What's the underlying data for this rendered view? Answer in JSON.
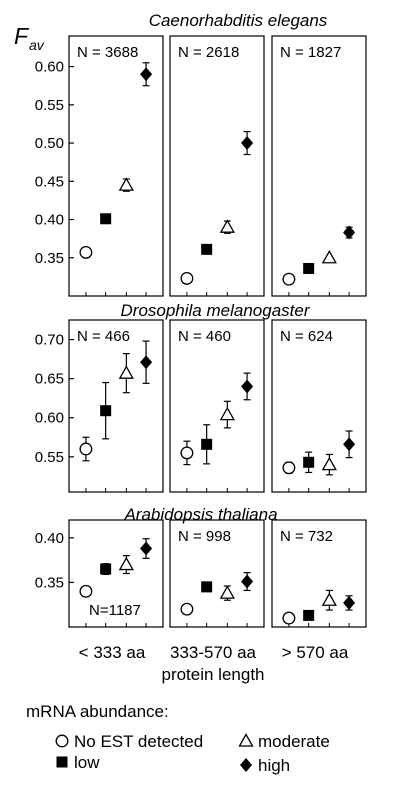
{
  "y_axis_label": "F",
  "y_axis_label_sub": "av",
  "legend": {
    "title": "mRNA abundance:",
    "items": [
      {
        "label": "No EST detected",
        "marker": "open-circle"
      },
      {
        "label": "moderate",
        "marker": "open-triangle"
      },
      {
        "label": "low",
        "marker": "filled-square"
      },
      {
        "label": "high",
        "marker": "filled-diamond"
      }
    ]
  },
  "x_categories": [
    {
      "line1": "< 333 aa",
      "line2": ""
    },
    {
      "line1": "333-570 aa",
      "line2": "protein length"
    },
    {
      "line1": "> 570 aa",
      "line2": ""
    }
  ],
  "chart_data": [
    {
      "type": "scatter",
      "title": "Caenorhabditis elegans",
      "ylim": [
        0.3,
        0.64
      ],
      "yticks": [
        0.35,
        0.4,
        0.45,
        0.5,
        0.55,
        0.6
      ],
      "ytick_labels": [
        "0.35",
        "0.40",
        "0.45",
        "0.50",
        "0.55",
        "0.60"
      ],
      "categories": [
        "< 333 aa",
        "333-570 aa",
        "> 570 aa"
      ],
      "n_labels": [
        "N = 3688",
        "N = 2618",
        "N = 1827"
      ],
      "series": [
        {
          "name": "No EST detected",
          "marker": "open-circle",
          "values": [
            0.357,
            0.323,
            0.322
          ],
          "errors": [
            0,
            0,
            0
          ]
        },
        {
          "name": "low",
          "marker": "filled-square",
          "values": [
            0.401,
            0.361,
            0.336
          ],
          "errors": [
            0,
            0,
            0
          ]
        },
        {
          "name": "moderate",
          "marker": "open-triangle",
          "values": [
            0.445,
            0.39,
            0.35
          ],
          "errors": [
            0.008,
            0.008,
            0
          ]
        },
        {
          "name": "high",
          "marker": "filled-diamond",
          "values": [
            0.59,
            0.5,
            0.383
          ],
          "errors": [
            0.015,
            0.015,
            0.007
          ]
        }
      ]
    },
    {
      "type": "scatter",
      "title": "Drosophila melanogaster",
      "ylim": [
        0.505,
        0.725
      ],
      "yticks": [
        0.55,
        0.6,
        0.65,
        0.7
      ],
      "ytick_labels": [
        "0.55",
        "0.60",
        "0.65",
        "0.70"
      ],
      "categories": [
        "< 333 aa",
        "333-570 aa",
        "> 570 aa"
      ],
      "n_labels": [
        "N = 466",
        "N = 460",
        "N = 624"
      ],
      "series": [
        {
          "name": "No EST detected",
          "marker": "open-circle",
          "values": [
            0.56,
            0.555,
            0.536
          ],
          "errors": [
            0.015,
            0.015,
            0.007
          ]
        },
        {
          "name": "low",
          "marker": "filled-square",
          "values": [
            0.609,
            0.566,
            0.543
          ],
          "errors": [
            0.036,
            0.025,
            0.013
          ]
        },
        {
          "name": "moderate",
          "marker": "open-triangle",
          "values": [
            0.657,
            0.604,
            0.54
          ],
          "errors": [
            0.025,
            0.017,
            0.013
          ]
        },
        {
          "name": "high",
          "marker": "filled-diamond",
          "values": [
            0.671,
            0.64,
            0.566
          ],
          "errors": [
            0.027,
            0.017,
            0.017
          ]
        }
      ]
    },
    {
      "type": "scatter",
      "title": "Arabidopsis thaliana",
      "ylim": [
        0.3,
        0.42
      ],
      "yticks": [
        0.35,
        0.4
      ],
      "ytick_labels": [
        "0.35",
        "0.40"
      ],
      "categories": [
        "< 333 aa",
        "333-570 aa",
        "> 570 aa"
      ],
      "n_labels": [
        "N=1187",
        "N = 998",
        "N = 732"
      ],
      "series": [
        {
          "name": "No EST detected",
          "marker": "open-circle",
          "values": [
            0.34,
            0.32,
            0.31
          ],
          "errors": [
            0,
            0,
            0
          ]
        },
        {
          "name": "low",
          "marker": "filled-square",
          "values": [
            0.365,
            0.345,
            0.313
          ],
          "errors": [
            0.006,
            0.005,
            0
          ]
        },
        {
          "name": "moderate",
          "marker": "open-triangle",
          "values": [
            0.37,
            0.338,
            0.33
          ],
          "errors": [
            0.01,
            0.008,
            0.011
          ]
        },
        {
          "name": "high",
          "marker": "filled-diamond",
          "values": [
            0.388,
            0.351,
            0.327
          ],
          "errors": [
            0.011,
            0.01,
            0.008
          ]
        }
      ]
    }
  ]
}
